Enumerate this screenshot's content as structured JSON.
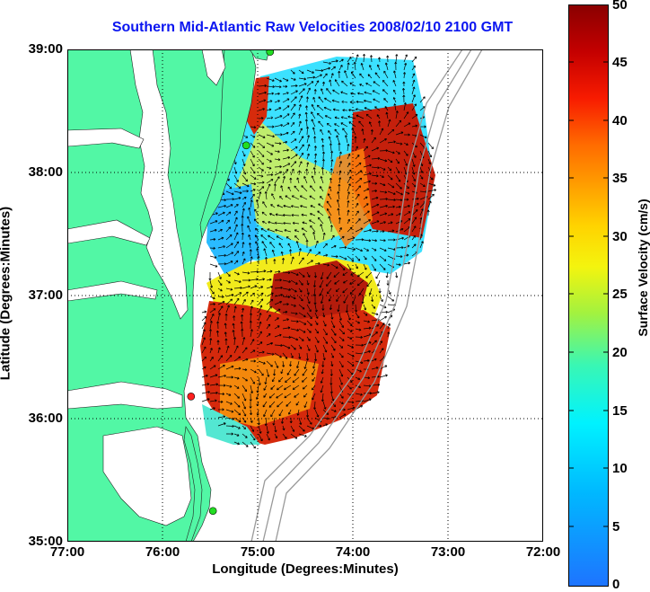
{
  "title": "Southern Mid-Atlantic Raw Velocities 2008/02/10 2100 GMT",
  "axes": {
    "xlabel": "Longitude (Degrees:Minutes)",
    "ylabel": "Latitude (Degrees:Minutes)",
    "xticks": [
      "77:00",
      "76:00",
      "75:00",
      "74:00",
      "73:00",
      "72:00"
    ],
    "yticks": [
      "39:00",
      "38:00",
      "37:00",
      "36:00",
      "35:00"
    ],
    "xlim": [
      -77,
      -72
    ],
    "ylim": [
      35,
      39
    ],
    "grid": "dotted"
  },
  "colorbar": {
    "label": "Surface Velocity (cm/s)",
    "ticks": [
      "50",
      "45",
      "40",
      "35",
      "30",
      "25",
      "20",
      "15",
      "10",
      "5",
      "0"
    ],
    "range": [
      0,
      50
    ],
    "colors": [
      "#1e74ff",
      "#00b8ff",
      "#00f2ff",
      "#39f7b4",
      "#a3f23f",
      "#f4f40e",
      "#ffd300",
      "#ffa600",
      "#ff6b00",
      "#f81b00",
      "#c40000",
      "#8a0000"
    ]
  },
  "colors": {
    "title": "#0b16f0",
    "land": "#52f7a5",
    "bathymetry": "#9a9a9a",
    "station_green": "#22dd22",
    "station_red": "#ff1f1f"
  },
  "stations": [
    {
      "lon": -74.87,
      "lat": 38.98,
      "color": "green"
    },
    {
      "lon": -75.12,
      "lat": 38.22,
      "color": "green"
    },
    {
      "lon": -75.7,
      "lat": 36.18,
      "color": "red"
    },
    {
      "lon": -75.47,
      "lat": 35.25,
      "color": "green"
    }
  ]
}
